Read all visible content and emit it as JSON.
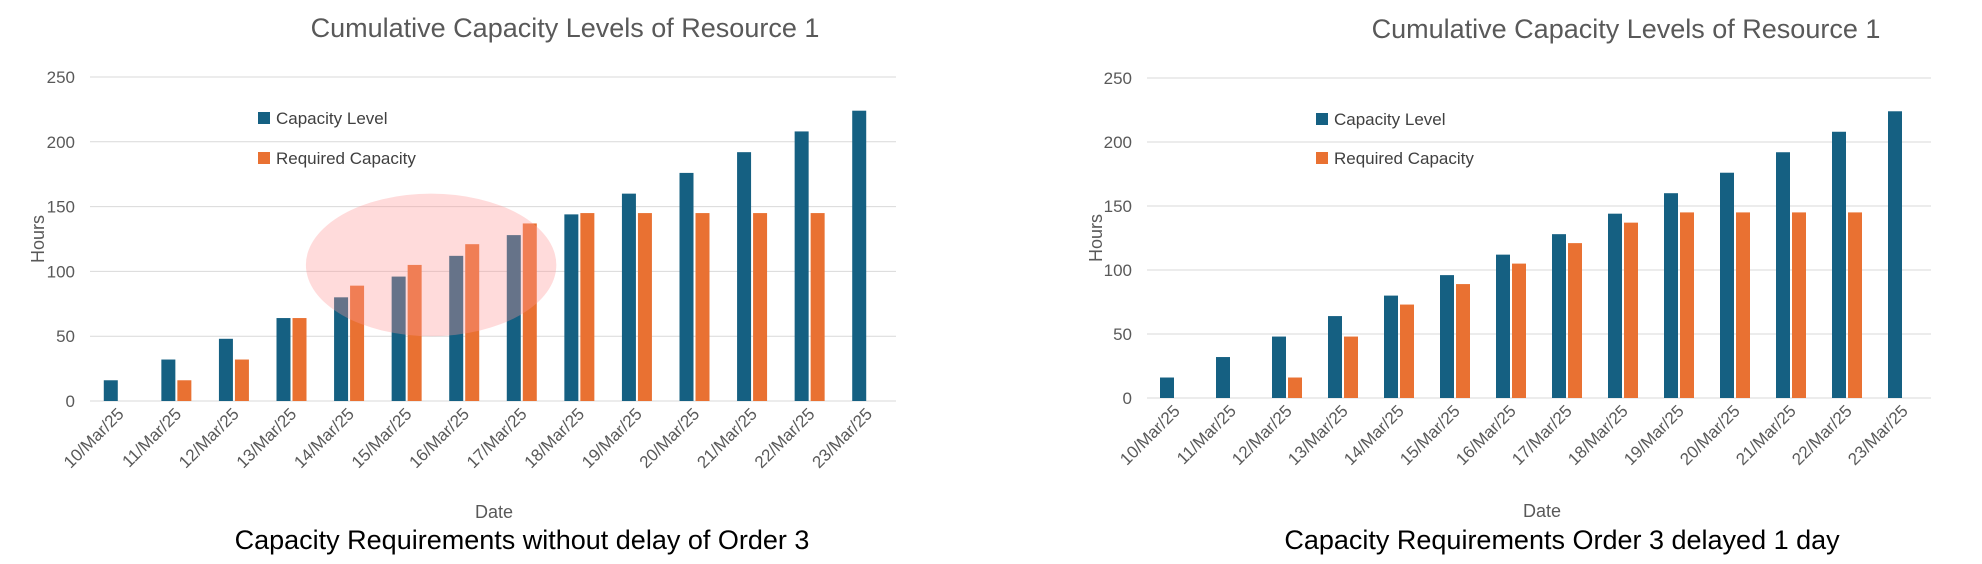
{
  "chart_data": [
    {
      "type": "bar",
      "title": "Cumulative Capacity Levels of Resource 1",
      "caption": "Capacity Requirements without delay  of Order 3",
      "xlabel": "Date",
      "ylabel": "Hours",
      "ylim": [
        0,
        250
      ],
      "yticks": [
        0,
        50,
        100,
        150,
        200,
        250
      ],
      "grid": true,
      "legend_position": "top-left",
      "categories": [
        "10/Mar/25",
        "11/Mar/25",
        "12/Mar/25",
        "13/Mar/25",
        "14/Mar/25",
        "15/Mar/25",
        "16/Mar/25",
        "17/Mar/25",
        "18/Mar/25",
        "19/Mar/25",
        "20/Mar/25",
        "21/Mar/25",
        "22/Mar/25",
        "23/Mar/25"
      ],
      "series": [
        {
          "name": "Capacity Level",
          "color": "#156082",
          "values": [
            16,
            32,
            48,
            64,
            80,
            96,
            112,
            128,
            144,
            160,
            176,
            192,
            208,
            224
          ]
        },
        {
          "name": "Required Capacity",
          "color": "#e97132",
          "values": [
            0,
            16,
            32,
            64,
            89,
            105,
            121,
            137,
            145,
            145,
            145,
            145,
            145,
            0
          ]
        }
      ],
      "highlight": {
        "shape": "ellipse",
        "color": "#ff9999",
        "categories": [
          "14/Mar/25",
          "17/Mar/25"
        ],
        "y_range": [
          50,
          160
        ]
      }
    },
    {
      "type": "bar",
      "title": "Cumulative Capacity Levels of Resource 1",
      "caption": "Capacity Requirements Order 3 delayed 1 day",
      "xlabel": "Date",
      "ylabel": "Hours",
      "ylim": [
        0,
        250
      ],
      "yticks": [
        0,
        50,
        100,
        150,
        200,
        250
      ],
      "grid": true,
      "legend_position": "top-left",
      "categories": [
        "10/Mar/25",
        "11/Mar/25",
        "12/Mar/25",
        "13/Mar/25",
        "14/Mar/25",
        "15/Mar/25",
        "16/Mar/25",
        "17/Mar/25",
        "18/Mar/25",
        "19/Mar/25",
        "20/Mar/25",
        "21/Mar/25",
        "22/Mar/25",
        "23/Mar/25"
      ],
      "series": [
        {
          "name": "Capacity Level",
          "color": "#156082",
          "values": [
            16,
            32,
            48,
            64,
            80,
            96,
            112,
            128,
            144,
            160,
            176,
            192,
            208,
            224
          ]
        },
        {
          "name": "Required Capacity",
          "color": "#e97132",
          "values": [
            0,
            0,
            16,
            48,
            73,
            89,
            105,
            121,
            137,
            145,
            145,
            145,
            145,
            0
          ]
        }
      ]
    }
  ]
}
